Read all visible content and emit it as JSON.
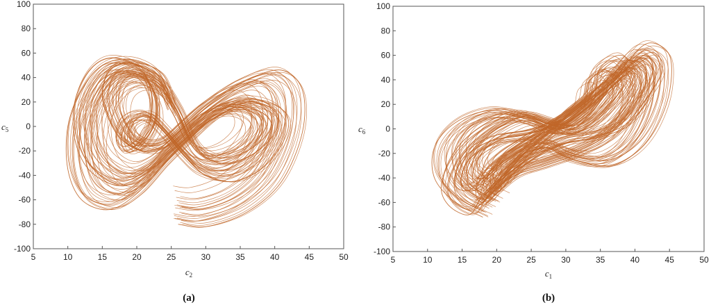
{
  "chart_data": [
    {
      "type": "line",
      "caption": "(a)",
      "xlabel": "c",
      "xlabel_sub": "2",
      "ylabel": "c",
      "ylabel_sub": "5",
      "xlim": [
        5,
        50
      ],
      "ylim": [
        -100,
        100
      ],
      "xticks": [
        5,
        10,
        15,
        20,
        25,
        30,
        35,
        40,
        45,
        50
      ],
      "yticks": [
        -100,
        -80,
        -60,
        -40,
        -20,
        0,
        20,
        40,
        60,
        80,
        100
      ],
      "grid": false,
      "color": "#c0672a",
      "series": [
        {
          "description_points": "approximate trajectory samples in data units",
          "points": [
            [
              26,
              -80
            ],
            [
              30,
              -82
            ],
            [
              36,
              -70
            ],
            [
              41,
              -45
            ],
            [
              44,
              -5
            ],
            [
              44,
              30
            ],
            [
              41,
              46
            ],
            [
              36,
              38
            ],
            [
              31,
              20
            ],
            [
              27,
              0
            ],
            [
              24,
              -15
            ],
            [
              21,
              -20
            ],
            [
              18,
              -12
            ],
            [
              16,
              5
            ],
            [
              15,
              25
            ],
            [
              16,
              45
            ],
            [
              19,
              52
            ],
            [
              23,
              40
            ],
            [
              26,
              15
            ],
            [
              28,
              -10
            ],
            [
              30,
              -25
            ],
            [
              33,
              -30
            ],
            [
              37,
              -22
            ],
            [
              40,
              -5
            ],
            [
              40,
              12
            ],
            [
              37,
              20
            ],
            [
              33,
              15
            ],
            [
              29,
              0
            ],
            [
              25,
              -20
            ],
            [
              21,
              -40
            ],
            [
              17,
              -48
            ],
            [
              13,
              -35
            ],
            [
              11,
              -10
            ],
            [
              11,
              20
            ],
            [
              13,
              45
            ],
            [
              16,
              56
            ],
            [
              20,
              50
            ],
            [
              22,
              30
            ],
            [
              22,
              5
            ],
            [
              20,
              -15
            ],
            [
              18,
              -20
            ],
            [
              17,
              -10
            ],
            [
              18,
              5
            ],
            [
              21,
              10
            ],
            [
              24,
              -5
            ],
            [
              27,
              -25
            ],
            [
              30,
              -40
            ],
            [
              34,
              -45
            ],
            [
              38,
              -35
            ],
            [
              41,
              -15
            ],
            [
              42,
              5
            ],
            [
              40,
              18
            ],
            [
              36,
              22
            ],
            [
              32,
              12
            ],
            [
              28,
              -8
            ],
            [
              24,
              -30
            ],
            [
              20,
              -55
            ],
            [
              16,
              -68
            ],
            [
              12,
              -60
            ],
            [
              10,
              -35
            ],
            [
              10,
              0
            ],
            [
              12,
              30
            ],
            [
              15,
              50
            ],
            [
              19,
              55
            ],
            [
              23,
              45
            ],
            [
              25,
              20
            ]
          ]
        }
      ]
    },
    {
      "type": "line",
      "caption": "(b)",
      "xlabel": "c",
      "xlabel_sub": "1",
      "ylabel": "c",
      "ylabel_sub": "6",
      "xlim": [
        5,
        50
      ],
      "ylim": [
        -100,
        100
      ],
      "xticks": [
        5,
        10,
        15,
        20,
        25,
        30,
        35,
        40,
        45,
        50
      ],
      "yticks": [
        -100,
        -80,
        -60,
        -40,
        -20,
        0,
        20,
        40,
        60,
        80,
        100
      ],
      "grid": false,
      "color": "#c0672a",
      "series": [
        {
          "description_points": "approximate trajectory samples in data units",
          "points": [
            [
              18,
              -72
            ],
            [
              14,
              -60
            ],
            [
              11,
              -40
            ],
            [
              11,
              -15
            ],
            [
              14,
              5
            ],
            [
              19,
              15
            ],
            [
              24,
              10
            ],
            [
              29,
              0
            ],
            [
              33,
              10
            ],
            [
              36,
              30
            ],
            [
              39,
              55
            ],
            [
              42,
              70
            ],
            [
              45,
              60
            ],
            [
              45,
              30
            ],
            [
              43,
              0
            ],
            [
              40,
              -20
            ],
            [
              36,
              -30
            ],
            [
              31,
              -25
            ],
            [
              27,
              -15
            ],
            [
              23,
              -20
            ],
            [
              19,
              -35
            ],
            [
              16,
              -50
            ],
            [
              14,
              -45
            ],
            [
              15,
              -25
            ],
            [
              19,
              -10
            ],
            [
              24,
              -5
            ],
            [
              29,
              5
            ],
            [
              34,
              25
            ],
            [
              38,
              45
            ],
            [
              41,
              60
            ],
            [
              43,
              50
            ],
            [
              42,
              25
            ],
            [
              39,
              5
            ],
            [
              35,
              -5
            ],
            [
              30,
              -10
            ],
            [
              26,
              -20
            ],
            [
              22,
              -35
            ],
            [
              18,
              -55
            ],
            [
              16,
              -70
            ],
            [
              13,
              -62
            ],
            [
              12,
              -45
            ],
            [
              14,
              -20
            ],
            [
              18,
              0
            ],
            [
              23,
              12
            ],
            [
              28,
              5
            ],
            [
              32,
              0
            ],
            [
              37,
              20
            ],
            [
              40,
              45
            ],
            [
              38,
              60
            ],
            [
              35,
              50
            ],
            [
              34,
              30
            ],
            [
              31,
              15
            ],
            [
              27,
              -5
            ],
            [
              23,
              -25
            ],
            [
              20,
              -45
            ],
            [
              18,
              -60
            ],
            [
              17,
              -50
            ],
            [
              19,
              -30
            ],
            [
              24,
              -10
            ],
            [
              30,
              10
            ],
            [
              36,
              35
            ],
            [
              42,
              62
            ],
            [
              44,
              48
            ],
            [
              41,
              20
            ],
            [
              37,
              -5
            ],
            [
              32,
              -20
            ],
            [
              27,
              -30
            ],
            [
              22,
              -40
            ],
            [
              17,
              -65
            ]
          ]
        }
      ]
    }
  ]
}
